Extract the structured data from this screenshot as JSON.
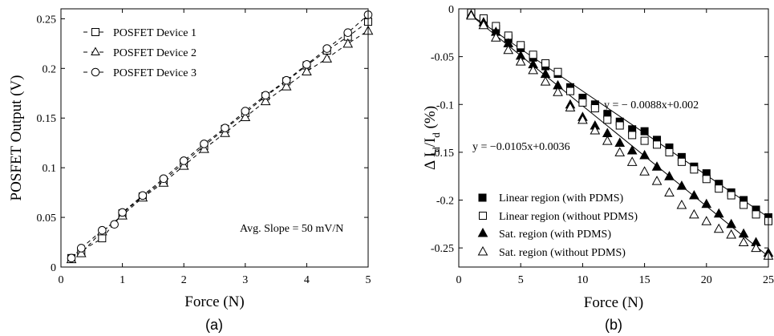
{
  "chart_data": [
    {
      "id": "a",
      "type": "scatter",
      "panel_label": "(a)",
      "xlabel": "Force (N)",
      "ylabel": "POSFET Output (V)",
      "xlim": [
        0,
        5
      ],
      "ylim": [
        0,
        0.26
      ],
      "xticks": [
        0,
        1,
        2,
        3,
        4,
        5
      ],
      "yticks": [
        0,
        0.05,
        0.1,
        0.15,
        0.2,
        0.25
      ],
      "xtick_labels": [
        "0",
        "1",
        "2",
        "3",
        "4",
        "5"
      ],
      "ytick_labels": [
        "0",
        "0.05",
        "0.1",
        "0.15",
        "0.2",
        "0.25"
      ],
      "grid": false,
      "legend_position": "top-left",
      "annotation": "Avg. Slope = 50 mV/N",
      "series": [
        {
          "name": "POSFET Device 1",
          "marker": "square",
          "line": "dashed",
          "x": [
            0.17,
            0.33,
            0.67,
            1.0,
            1.33,
            1.67,
            2.0,
            2.33,
            2.67,
            3.0,
            3.33,
            3.67,
            4.0,
            4.33,
            4.67,
            5.0
          ],
          "y": [
            0.009,
            0.016,
            0.029,
            0.054,
            0.071,
            0.087,
            0.105,
            0.122,
            0.139,
            0.155,
            0.172,
            0.187,
            0.203,
            0.218,
            0.232,
            0.247
          ]
        },
        {
          "name": "POSFET Device 2",
          "marker": "triangle",
          "line": "dashed",
          "x": [
            0.17,
            0.33,
            0.67,
            1.0,
            1.33,
            1.67,
            2.0,
            2.33,
            2.67,
            3.0,
            3.33,
            3.67,
            4.0,
            4.33,
            4.67,
            5.0
          ],
          "y": [
            0.008,
            0.014,
            0.036,
            0.052,
            0.07,
            0.085,
            0.102,
            0.119,
            0.135,
            0.151,
            0.167,
            0.182,
            0.197,
            0.21,
            0.225,
            0.238
          ]
        },
        {
          "name": "POSFET Device 3",
          "marker": "circle",
          "line": "dashed",
          "x": [
            0.17,
            0.33,
            0.67,
            0.87,
            1.0,
            1.33,
            1.67,
            2.0,
            2.33,
            2.67,
            3.0,
            3.33,
            3.67,
            4.0,
            4.33,
            4.67,
            5.0
          ],
          "y": [
            0.009,
            0.019,
            0.037,
            0.043,
            0.055,
            0.072,
            0.089,
            0.107,
            0.124,
            0.14,
            0.157,
            0.173,
            0.188,
            0.204,
            0.22,
            0.236,
            0.254
          ]
        }
      ]
    },
    {
      "id": "b",
      "type": "scatter",
      "panel_label": "(b)",
      "xlabel": "Force (N)",
      "ylabel": "Δ I_d/I_d (%)",
      "ylabel_parts": {
        "prefix": "Δ I",
        "sub1": "d",
        "slash": "/I",
        "sub2": "d",
        "unit": " (%)"
      },
      "xlim": [
        0,
        25
      ],
      "ylim": [
        -0.27,
        0
      ],
      "xticks": [
        0,
        5,
        10,
        15,
        20,
        25
      ],
      "yticks": [
        0,
        -0.05,
        -0.1,
        -0.15,
        -0.2,
        -0.25
      ],
      "xtick_labels": [
        "0",
        "5",
        "10",
        "15",
        "20",
        "25"
      ],
      "ytick_labels": [
        "0",
        "-0.05",
        "-0.1",
        "-0.15",
        "-0.2",
        "-0.25"
      ],
      "grid": false,
      "legend_position": "bottom-left",
      "fit_lines": [
        {
          "label": "y = − 0.0088x+0.002",
          "slope": -0.0088,
          "intercept": 0.002
        },
        {
          "label": "y = −0.0105x+0.0036",
          "slope": -0.0105,
          "intercept": 0.0036
        }
      ],
      "series": [
        {
          "name": "Linear region (with PDMS)",
          "marker": "square-filled",
          "x": [
            1,
            2,
            3,
            4,
            5,
            6,
            7,
            8,
            9,
            10,
            11,
            12,
            13,
            14,
            15,
            16,
            17,
            18,
            19,
            20,
            21,
            22,
            23,
            24,
            25
          ],
          "y": [
            -0.005,
            -0.012,
            -0.021,
            -0.031,
            -0.041,
            -0.051,
            -0.06,
            -0.068,
            -0.082,
            -0.093,
            -0.1,
            -0.11,
            -0.118,
            -0.126,
            -0.128,
            -0.137,
            -0.145,
            -0.155,
            -0.165,
            -0.172,
            -0.183,
            -0.192,
            -0.2,
            -0.21,
            -0.218
          ]
        },
        {
          "name": "Linear region (without PDMS)",
          "marker": "square-open",
          "x": [
            1,
            2,
            3,
            4,
            5,
            6,
            7,
            8,
            9,
            10,
            11,
            12,
            13,
            14,
            15,
            16,
            17,
            18,
            19,
            20,
            21,
            22,
            23,
            24,
            25
          ],
          "y": [
            -0.004,
            -0.01,
            -0.018,
            -0.028,
            -0.038,
            -0.048,
            -0.057,
            -0.066,
            -0.086,
            -0.098,
            -0.104,
            -0.116,
            -0.122,
            -0.132,
            -0.138,
            -0.142,
            -0.15,
            -0.16,
            -0.168,
            -0.178,
            -0.188,
            -0.195,
            -0.205,
            -0.215,
            -0.222
          ]
        },
        {
          "name": "Sat. region (with PDMS)",
          "marker": "triangle-filled",
          "x": [
            1,
            2,
            3,
            4,
            5,
            6,
            7,
            8,
            9,
            10,
            11,
            12,
            13,
            14,
            15,
            16,
            17,
            18,
            19,
            20,
            21,
            22,
            23,
            24,
            25
          ],
          "y": [
            -0.006,
            -0.014,
            -0.024,
            -0.036,
            -0.049,
            -0.058,
            -0.068,
            -0.08,
            -0.1,
            -0.113,
            -0.122,
            -0.13,
            -0.14,
            -0.148,
            -0.153,
            -0.165,
            -0.175,
            -0.185,
            -0.195,
            -0.204,
            -0.214,
            -0.225,
            -0.235,
            -0.244,
            -0.255
          ]
        },
        {
          "name": "Sat. region (without PDMS)",
          "marker": "triangle-open",
          "x": [
            1,
            2,
            3,
            4,
            5,
            6,
            7,
            8,
            9,
            10,
            11,
            12,
            13,
            14,
            15,
            16,
            17,
            18,
            19,
            20,
            21,
            22,
            23,
            24,
            25
          ],
          "y": [
            -0.007,
            -0.017,
            -0.03,
            -0.043,
            -0.055,
            -0.064,
            -0.076,
            -0.087,
            -0.103,
            -0.116,
            -0.127,
            -0.138,
            -0.15,
            -0.16,
            -0.17,
            -0.18,
            -0.192,
            -0.205,
            -0.215,
            -0.222,
            -0.23,
            -0.236,
            -0.244,
            -0.25,
            -0.258
          ]
        }
      ]
    }
  ]
}
